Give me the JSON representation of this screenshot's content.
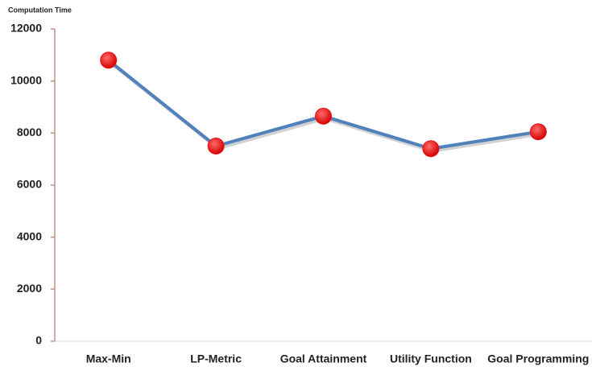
{
  "chart_data": {
    "type": "line",
    "title": "Computation Time",
    "categories": [
      "Max-Min",
      "LP-Metric",
      "Goal Attainment",
      "Utility Function",
      "Goal Programming"
    ],
    "series": [
      {
        "name": "Computation Time",
        "color": "#4f81bd",
        "marker_color": "#e8141a",
        "values": [
          10800,
          7500,
          8650,
          7400,
          8050
        ]
      }
    ],
    "ylim": [
      0,
      12000
    ],
    "yticks": [
      0,
      2000,
      4000,
      6000,
      8000,
      10000,
      12000
    ]
  }
}
